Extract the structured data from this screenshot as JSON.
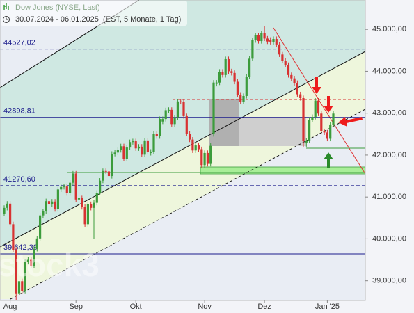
{
  "chart_data": {
    "type": "candlestick",
    "title": "Dow Jones (NYSE, Last)",
    "subtitle": "30.07.2024 - 06.01.2025  (EST, 5 Monate, 1 Tag)",
    "watermark": "stock3",
    "up_color": "#3c9c3c",
    "down_color": "#d83232",
    "ylim": [
      38530,
      45700
    ],
    "yticks": [
      {
        "value": 39000,
        "label": "39.000,00"
      },
      {
        "value": 40000,
        "label": "40.000,00"
      },
      {
        "value": 41000,
        "label": "41.000,00"
      },
      {
        "value": 42000,
        "label": "42.000,00"
      },
      {
        "value": 43000,
        "label": "43.000,00"
      },
      {
        "value": 44000,
        "label": "44.000,00"
      },
      {
        "value": 45000,
        "label": "45.000,00"
      }
    ],
    "levels": [
      {
        "value": 44527.02,
        "label": "44527,02",
        "style": "dashed",
        "color": "#1c1c8c"
      },
      {
        "value": 42898.81,
        "label": "42898,81",
        "style": "solid",
        "color": "#1c1c8c"
      },
      {
        "value": 41270.6,
        "label": "41270,60",
        "style": "dashed",
        "color": "#1c1c8c"
      },
      {
        "value": 39642.39,
        "label": "39.642,39",
        "style": "solid",
        "color": "#1c1c8c"
      }
    ],
    "categories": [
      null,
      null,
      "Aug",
      null,
      null,
      null,
      null,
      null,
      null,
      null,
      null,
      null,
      null,
      null,
      null,
      null,
      null,
      null,
      null,
      null,
      null,
      null,
      null,
      null,
      "Sep",
      null,
      null,
      null,
      null,
      null,
      null,
      null,
      null,
      null,
      null,
      null,
      null,
      null,
      null,
      null,
      null,
      null,
      null,
      null,
      "Okt",
      null,
      null,
      null,
      null,
      null,
      null,
      null,
      null,
      null,
      null,
      null,
      null,
      null,
      null,
      null,
      null,
      null,
      null,
      null,
      null,
      null,
      null,
      "Nov",
      null,
      null,
      null,
      null,
      null,
      null,
      null,
      null,
      null,
      null,
      null,
      null,
      null,
      null,
      null,
      null,
      null,
      null,
      null,
      "Dez",
      null,
      null,
      null,
      null,
      null,
      null,
      null,
      null,
      null,
      null,
      null,
      null,
      null,
      null,
      null,
      null,
      null,
      null,
      null,
      null,
      "Jan '25",
      null,
      null
    ],
    "ohlc": [
      [
        40600,
        40800,
        40540,
        40740
      ],
      [
        40740,
        40900,
        40680,
        40840
      ],
      [
        40840,
        40900,
        40290,
        40350
      ],
      [
        40350,
        40410,
        39680,
        39740
      ],
      [
        39740,
        39800,
        38500,
        38700
      ],
      [
        38700,
        39050,
        38640,
        38990
      ],
      [
        38990,
        39050,
        38700,
        38760
      ],
      [
        38760,
        39510,
        38700,
        39450
      ],
      [
        39450,
        39560,
        39390,
        39500
      ],
      [
        39500,
        39560,
        39300,
        39360
      ],
      [
        39360,
        39820,
        39300,
        39760
      ],
      [
        39760,
        40070,
        39700,
        40010
      ],
      [
        40010,
        40620,
        39950,
        40560
      ],
      [
        40560,
        40720,
        40500,
        40660
      ],
      [
        40660,
        40960,
        40600,
        40900
      ],
      [
        40900,
        40960,
        40770,
        40830
      ],
      [
        40830,
        40950,
        40770,
        40890
      ],
      [
        40890,
        40950,
        40650,
        40710
      ],
      [
        40710,
        41240,
        40650,
        41180
      ],
      [
        41180,
        41300,
        41120,
        41240
      ],
      [
        41240,
        41310,
        41180,
        41250
      ],
      [
        41250,
        41310,
        41030,
        41090
      ],
      [
        41090,
        41400,
        41030,
        41340
      ],
      [
        41340,
        41620,
        41280,
        41560
      ],
      [
        41560,
        41620,
        40880,
        40940
      ],
      [
        40940,
        41030,
        40880,
        40970
      ],
      [
        40970,
        41030,
        40700,
        40760
      ],
      [
        40760,
        40820,
        40290,
        40350
      ],
      [
        40350,
        40890,
        40290,
        40830
      ],
      [
        40830,
        40890,
        40680,
        40740
      ],
      [
        40740,
        40920,
        40000,
        40860
      ],
      [
        40860,
        41160,
        40800,
        41100
      ],
      [
        41100,
        41450,
        41040,
        41390
      ],
      [
        41390,
        41680,
        41330,
        41620
      ],
      [
        41620,
        41680,
        41550,
        41610
      ],
      [
        41610,
        41670,
        41440,
        41500
      ],
      [
        41500,
        42090,
        41440,
        42030
      ],
      [
        42030,
        42120,
        41970,
        42060
      ],
      [
        42060,
        42180,
        42000,
        42120
      ],
      [
        42120,
        42270,
        42060,
        42210
      ],
      [
        42210,
        42270,
        41850,
        41910
      ],
      [
        41910,
        42240,
        41850,
        42180
      ],
      [
        42180,
        42370,
        42120,
        42310
      ],
      [
        42310,
        42390,
        42250,
        42330
      ],
      [
        42330,
        42390,
        42100,
        42160
      ],
      [
        42160,
        42260,
        42100,
        42200
      ],
      [
        42200,
        42260,
        41950,
        42010
      ],
      [
        42010,
        42410,
        41950,
        42350
      ],
      [
        42350,
        42410,
        42020,
        42080
      ],
      [
        42050,
        42140,
        41990,
        42080
      ],
      [
        42080,
        42570,
        42020,
        42510
      ],
      [
        42510,
        42570,
        42390,
        42450
      ],
      [
        42450,
        42920,
        42390,
        42860
      ],
      [
        42800,
        42920,
        42740,
        42860
      ],
      [
        42860,
        43130,
        42800,
        43070
      ],
      [
        43070,
        43140,
        43010,
        43080
      ],
      [
        43080,
        43140,
        42680,
        42740
      ],
      [
        42740,
        42960,
        42680,
        42900
      ],
      [
        42900,
        43340,
        42840,
        43280
      ],
      [
        43280,
        43340,
        43210,
        43270
      ],
      [
        43270,
        43330,
        42870,
        42930
      ],
      [
        42930,
        42990,
        42450,
        42510
      ],
      [
        42510,
        42570,
        42310,
        42370
      ],
      [
        42370,
        42430,
        42050,
        42110
      ],
      [
        42110,
        42290,
        42050,
        42230
      ],
      [
        42230,
        42290,
        42080,
        42140
      ],
      [
        42140,
        42200,
        41700,
        41760
      ],
      [
        41760,
        42110,
        41700,
        42050
      ],
      [
        42050,
        42110,
        41730,
        41790
      ],
      [
        41790,
        42280,
        41730,
        42220
      ],
      [
        42500,
        43790,
        42440,
        43730
      ],
      [
        43700,
        43790,
        43640,
        43730
      ],
      [
        43730,
        44050,
        43670,
        43990
      ],
      [
        43990,
        44050,
        43850,
        43910
      ],
      [
        43910,
        44350,
        43850,
        44290
      ],
      [
        44290,
        44350,
        43940,
        44000
      ],
      [
        44000,
        44060,
        43900,
        43960
      ],
      [
        43960,
        44020,
        43690,
        43750
      ],
      [
        43750,
        43810,
        43380,
        43440
      ],
      [
        43440,
        43500,
        43210,
        43270
      ],
      [
        43270,
        43470,
        43210,
        43410
      ],
      [
        43410,
        43930,
        43350,
        43870
      ],
      [
        43870,
        44360,
        43810,
        44300
      ],
      [
        44300,
        44800,
        44240,
        44740
      ],
      [
        44740,
        44920,
        44680,
        44860
      ],
      [
        44860,
        44920,
        44660,
        44720
      ],
      [
        44720,
        44970,
        44660,
        44910
      ],
      [
        44910,
        45070,
        44720,
        44780
      ],
      [
        44780,
        44840,
        44650,
        44710
      ],
      [
        44750,
        44810,
        44640,
        44700
      ],
      [
        44700,
        44830,
        44640,
        44770
      ],
      [
        44770,
        44830,
        44580,
        44640
      ],
      [
        44640,
        44700,
        44340,
        44400
      ],
      [
        44400,
        44460,
        44190,
        44250
      ],
      [
        44250,
        44310,
        44090,
        44150
      ],
      [
        44150,
        44210,
        43850,
        43910
      ],
      [
        43910,
        43970,
        43770,
        43830
      ],
      [
        43830,
        43890,
        43660,
        43720
      ],
      [
        43720,
        43780,
        43390,
        43450
      ],
      [
        43450,
        43510,
        43300,
        43360
      ],
      [
        43360,
        43420,
        42200,
        42330
      ],
      [
        42300,
        42400,
        42200,
        42340
      ],
      [
        42340,
        42900,
        42280,
        42840
      ],
      [
        42840,
        42970,
        42780,
        42910
      ],
      [
        42910,
        43360,
        42850,
        43300
      ],
      [
        43300,
        43360,
        42930,
        42990
      ],
      [
        42990,
        43050,
        42510,
        42570
      ],
      [
        42570,
        42630,
        42480,
        42540
      ],
      [
        42540,
        42600,
        42330,
        42390
      ],
      [
        42390,
        42790,
        42330,
        42730
      ],
      [
        42730,
        43050,
        42670,
        42990
      ]
    ]
  }
}
